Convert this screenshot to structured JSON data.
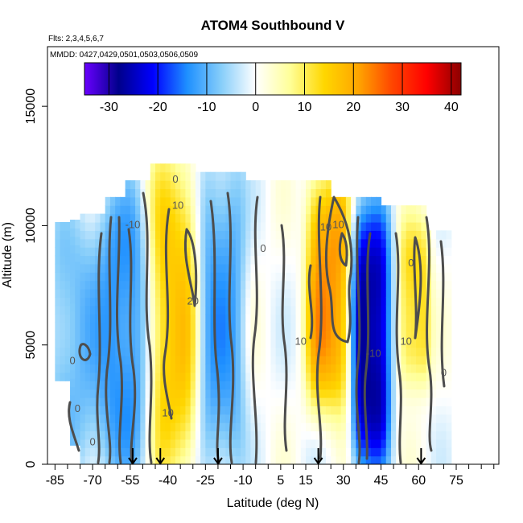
{
  "chart_data": {
    "type": "heatmap",
    "title": "ATOM4 Southbound V",
    "annotations": {
      "flights": "Flts: 2,3,4,5,6,7",
      "dates": "MMDD: 0427,0429,0501,0503,0506,0509"
    },
    "xlabel": "Latitude (deg N)",
    "ylabel": "Altitude (m)",
    "xlim": [
      -88,
      92
    ],
    "ylim": [
      0,
      17500
    ],
    "x_ticks": [
      -85,
      -70,
      -55,
      -40,
      -25,
      -10,
      5,
      15,
      30,
      45,
      60,
      75
    ],
    "x_minor_ticks": [
      -80,
      -75,
      -65,
      -60,
      -50,
      -45,
      -35,
      -30,
      -20,
      -15,
      -5,
      0,
      10,
      20,
      25,
      35,
      40,
      50,
      55,
      65,
      70,
      80,
      85,
      90
    ],
    "y_ticks": [
      0,
      5000,
      10000,
      15000
    ],
    "colorbar": {
      "min": -35,
      "max": 42,
      "ticks": [
        -30,
        -20,
        -10,
        0,
        10,
        20,
        30,
        40
      ],
      "colors": [
        "#6a00ff",
        "#00008b",
        "#0000ff",
        "#1e90ff",
        "#87cefa",
        "#ffffff",
        "#ffff99",
        "#ffd700",
        "#ffa500",
        "#ff4500",
        "#ff0000",
        "#8b0000"
      ]
    },
    "contour_levels": [
      -10,
      0,
      10,
      20
    ],
    "contour_label_samples": [
      {
        "text": "0",
        "lat": -37,
        "alt": 11800
      },
      {
        "text": "10",
        "lat": -36,
        "alt": 10700
      },
      {
        "text": "0",
        "lat": -2,
        "alt": 8900
      },
      {
        "text": "20",
        "lat": -30,
        "alt": 6700
      },
      {
        "text": "10",
        "lat": 13,
        "alt": 5000
      },
      {
        "text": "10",
        "lat": 23,
        "alt": 9800
      },
      {
        "text": "10",
        "lat": 28,
        "alt": 9900
      },
      {
        "text": "-10",
        "lat": 42,
        "alt": 4500
      },
      {
        "text": "0",
        "lat": 57,
        "alt": 8300
      },
      {
        "text": "10",
        "lat": 55,
        "alt": 5000
      },
      {
        "text": "0",
        "lat": 70,
        "alt": 3700
      },
      {
        "text": "-10",
        "lat": -54,
        "alt": 9900
      },
      {
        "text": "0",
        "lat": -78,
        "alt": 4200
      },
      {
        "text": "0",
        "lat": -76,
        "alt": 2200
      },
      {
        "text": "0",
        "lat": -70,
        "alt": 800
      },
      {
        "text": "10",
        "lat": -40,
        "alt": 2000
      }
    ],
    "flight_markers_lat": [
      -54,
      -43,
      -20,
      20,
      61
    ],
    "field_regions": [
      {
        "lat": [
          -85,
          -70
        ],
        "alt": [
          0,
          10000
        ],
        "v": -9
      },
      {
        "lat": [
          -65,
          -48
        ],
        "alt": [
          0,
          11000
        ],
        "v": -14
      },
      {
        "lat": [
          -47,
          -30
        ],
        "alt": [
          0,
          12200
        ],
        "v": 16
      },
      {
        "lat": [
          -26,
          -12
        ],
        "alt": [
          0,
          12300
        ],
        "v": -12
      },
      {
        "lat": [
          18,
          30
        ],
        "alt": [
          3000,
          11500
        ],
        "v": 22
      },
      {
        "lat": [
          36,
          46
        ],
        "alt": [
          500,
          10000
        ],
        "v": -28
      },
      {
        "lat": [
          55,
          62
        ],
        "alt": [
          4000,
          9500
        ],
        "v": 14
      }
    ]
  }
}
